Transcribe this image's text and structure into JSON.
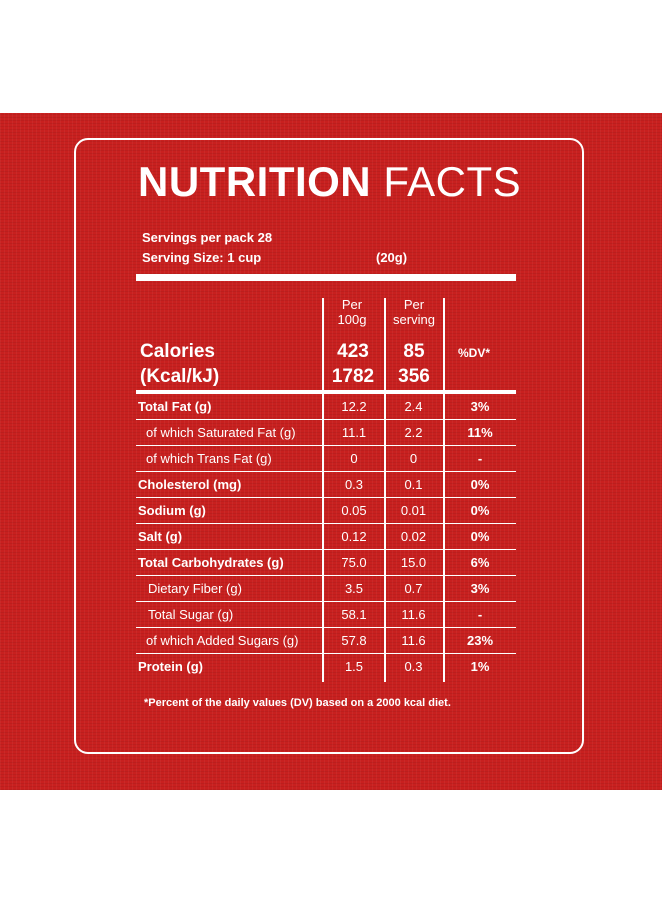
{
  "title": {
    "bold": "NUTRITION",
    "light": "FACTS"
  },
  "servings_per_pack": "Servings per pack  28",
  "serving_size": {
    "label": "Serving Size: 1 cup",
    "grams": "(20g)"
  },
  "columns": {
    "per100_line1": "Per",
    "per100_line2": "100g",
    "perserv_line1": "Per",
    "perserv_line2": "serving",
    "dv": "%DV*"
  },
  "calories": {
    "line1": "Calories",
    "line2": "(Kcal/kJ)",
    "kcal_100g": "423",
    "kcal_serving": "85",
    "kj_100g": "1782",
    "kj_serving": "356"
  },
  "rows": [
    {
      "label": "Total Fat (g)",
      "per100g": "12.2",
      "per_serving": "2.4",
      "dv": "3%"
    },
    {
      "label": "of which Saturated Fat (g)",
      "per100g": "11.1",
      "per_serving": "2.2",
      "dv": "11%"
    },
    {
      "label": "of which Trans Fat (g)",
      "per100g": "0",
      "per_serving": "0",
      "dv": "-"
    },
    {
      "label": "Cholesterol (mg)",
      "per100g": "0.3",
      "per_serving": "0.1",
      "dv": "0%"
    },
    {
      "label": "Sodium (g)",
      "per100g": "0.05",
      "per_serving": "0.01",
      "dv": "0%"
    },
    {
      "label": "Salt (g)",
      "per100g": "0.12",
      "per_serving": "0.02",
      "dv": "0%"
    },
    {
      "label": "Total Carbohydrates (g)",
      "per100g": "75.0",
      "per_serving": "15.0",
      "dv": "6%"
    },
    {
      "label": "Dietary Fiber (g)",
      "per100g": "3.5",
      "per_serving": "0.7",
      "dv": "3%"
    },
    {
      "label": "Total Sugar (g)",
      "per100g": "58.1",
      "per_serving": "11.6",
      "dv": "-"
    },
    {
      "label": "of which Added Sugars (g)",
      "per100g": "57.8",
      "per_serving": "11.6",
      "dv": "23%"
    },
    {
      "label": "Protein (g)",
      "per100g": "1.5",
      "per_serving": "0.3",
      "dv": "1%"
    }
  ],
  "footnote": "*Percent of the daily values (DV) based on a 2000 kcal diet.",
  "colors": {
    "background": "#c8201f",
    "text": "#ffffff"
  }
}
